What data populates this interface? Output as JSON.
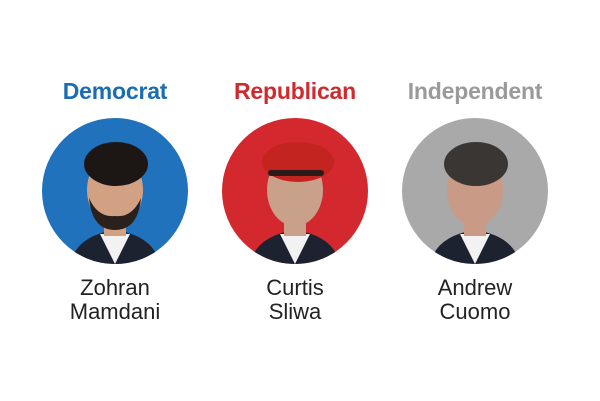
{
  "candidates": [
    {
      "party": "Democrat",
      "first_name": "Zohran",
      "last_name": "Mamdani",
      "color": "#1a6db3",
      "bg": "#1f72bb",
      "hair": "#1c1714",
      "skin": "#d2a184"
    },
    {
      "party": "Republican",
      "first_name": "Curtis",
      "last_name": "Sliwa",
      "color": "#cf2a2e",
      "bg": "#d3282e",
      "hair": "#c4241f",
      "skin": "#c9a08a"
    },
    {
      "party": "Independent",
      "first_name": "Andrew",
      "last_name": "Cuomo",
      "color": "#9a9a9a",
      "bg": "#a9a9a9",
      "hair": "#3a3633",
      "skin": "#c99a85"
    }
  ]
}
